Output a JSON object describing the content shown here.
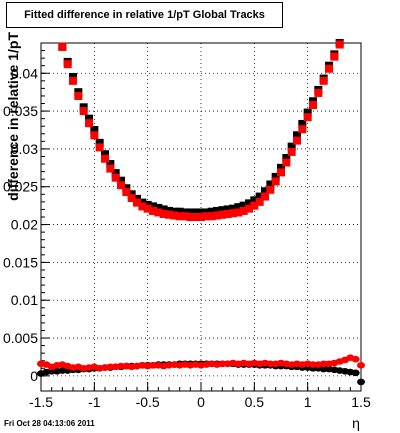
{
  "page": {
    "title": "Fitted difference in relative 1/pT  Global Tracks",
    "timestamp": "Fri Oct 28 04:13:06 2011"
  },
  "chart_data": {
    "type": "scatter",
    "title": "Fitted difference in relative 1/pT  Global Tracks",
    "xlabel": "η",
    "ylabel": "difference in relative 1/pT",
    "xlim": [
      -1.5,
      1.5
    ],
    "ylim": [
      -0.002,
      0.044
    ],
    "x_ticks": [
      -1.5,
      -1,
      -0.5,
      0,
      0.5,
      1,
      1.5
    ],
    "x_tick_labels": [
      "-1.5",
      "-1",
      "-0.5",
      "0",
      "0.5",
      "1",
      "1.5"
    ],
    "y_ticks": [
      0,
      0.005,
      0.01,
      0.015,
      0.02,
      0.025,
      0.03,
      0.035,
      0.04
    ],
    "y_tick_labels": [
      "0",
      "0.005",
      "0.01",
      "0.015",
      "0.02",
      "0.025",
      "0.03",
      "0.035",
      "0.04"
    ],
    "grid": true,
    "series": [
      {
        "color": "#000000",
        "x": [
          -1.3,
          -1.25,
          -1.2,
          -1.15,
          -1.1,
          -1.05,
          -1.0,
          -0.95,
          -0.9,
          -0.85,
          -0.8,
          -0.75,
          -0.7,
          -0.65,
          -0.6,
          -0.55,
          -0.5,
          -0.45,
          -0.4,
          -0.35,
          -0.3,
          -0.25,
          -0.2,
          -0.15,
          -0.1,
          -0.05,
          0.0,
          0.05,
          0.1,
          0.15,
          0.2,
          0.25,
          0.3,
          0.35,
          0.4,
          0.45,
          0.5,
          0.55,
          0.6,
          0.65,
          0.7,
          0.75,
          0.8,
          0.85,
          0.9,
          0.95,
          1.0,
          1.05,
          1.1,
          1.15,
          1.2,
          1.25,
          1.3
        ],
        "y": [
          0.0435,
          0.0415,
          0.0395,
          0.0375,
          0.0355,
          0.034,
          0.0325,
          0.0308,
          0.0293,
          0.028,
          0.0268,
          0.0258,
          0.0248,
          0.024,
          0.0234,
          0.0229,
          0.0226,
          0.0224,
          0.0222,
          0.022,
          0.0218,
          0.0217,
          0.0217,
          0.0216,
          0.0216,
          0.0216,
          0.0216,
          0.0216,
          0.0217,
          0.0218,
          0.0219,
          0.022,
          0.0221,
          0.0223,
          0.0225,
          0.0228,
          0.0232,
          0.0237,
          0.0244,
          0.0253,
          0.0263,
          0.0275,
          0.0288,
          0.0303,
          0.0318,
          0.0333,
          0.0348,
          0.0363,
          0.0378,
          0.0393,
          0.041,
          0.0425,
          0.044
        ]
      },
      {
        "color": "#ff0000",
        "x": [
          -1.3,
          -1.25,
          -1.2,
          -1.15,
          -1.1,
          -1.05,
          -1.0,
          -0.95,
          -0.9,
          -0.85,
          -0.8,
          -0.75,
          -0.7,
          -0.65,
          -0.6,
          -0.55,
          -0.5,
          -0.45,
          -0.4,
          -0.35,
          -0.3,
          -0.25,
          -0.2,
          -0.15,
          -0.1,
          -0.05,
          0.0,
          0.05,
          0.1,
          0.15,
          0.2,
          0.25,
          0.3,
          0.35,
          0.4,
          0.45,
          0.5,
          0.55,
          0.6,
          0.65,
          0.7,
          0.75,
          0.8,
          0.85,
          0.9,
          0.95,
          1.0,
          1.05,
          1.1,
          1.15,
          1.2,
          1.25,
          1.3
        ],
        "y": [
          0.0435,
          0.0412,
          0.039,
          0.037,
          0.035,
          0.0334,
          0.0318,
          0.0302,
          0.0287,
          0.0274,
          0.0262,
          0.0252,
          0.0243,
          0.0235,
          0.0229,
          0.0224,
          0.0221,
          0.0218,
          0.0216,
          0.0214,
          0.0213,
          0.0212,
          0.0211,
          0.0211,
          0.021,
          0.021,
          0.021,
          0.0211,
          0.0211,
          0.0212,
          0.0213,
          0.0214,
          0.0215,
          0.0216,
          0.0218,
          0.0221,
          0.0225,
          0.023,
          0.0237,
          0.0246,
          0.0257,
          0.0269,
          0.0282,
          0.0296,
          0.0311,
          0.0326,
          0.0342,
          0.0358,
          0.0374,
          0.039,
          0.0406,
          0.0422,
          0.0438
        ]
      },
      {
        "color": "#000000",
        "x": [
          -1.5,
          -1.45,
          -1.4,
          -1.35,
          -1.3,
          -1.25,
          -1.2,
          -1.15,
          -1.1,
          -1.05,
          -1.0,
          -0.95,
          -0.9,
          -0.85,
          -0.8,
          -0.75,
          -0.7,
          -0.65,
          -0.6,
          -0.55,
          -0.5,
          -0.45,
          -0.4,
          -0.35,
          -0.3,
          -0.25,
          -0.2,
          -0.15,
          -0.1,
          -0.05,
          0.0,
          0.05,
          0.1,
          0.15,
          0.2,
          0.25,
          0.3,
          0.35,
          0.4,
          0.45,
          0.5,
          0.55,
          0.6,
          0.65,
          0.7,
          0.75,
          0.8,
          0.85,
          0.9,
          0.95,
          1.0,
          1.05,
          1.1,
          1.15,
          1.2,
          1.25,
          1.3,
          1.35,
          1.4,
          1.45,
          1.5
        ],
        "y": [
          0.0003,
          0.0005,
          0.0006,
          0.0006,
          0.0007,
          0.0007,
          0.0008,
          0.0008,
          0.0009,
          0.0009,
          0.001,
          0.001,
          0.0011,
          0.0011,
          0.0012,
          0.0012,
          0.0013,
          0.0013,
          0.0013,
          0.0014,
          0.0014,
          0.0014,
          0.0015,
          0.0015,
          0.0015,
          0.0015,
          0.0016,
          0.0016,
          0.0016,
          0.0016,
          0.0016,
          0.0016,
          0.0016,
          0.0016,
          0.0016,
          0.0016,
          0.0016,
          0.0015,
          0.0015,
          0.0015,
          0.0015,
          0.0014,
          0.0014,
          0.0014,
          0.0013,
          0.0013,
          0.0013,
          0.0012,
          0.0012,
          0.0011,
          0.0011,
          0.001,
          0.001,
          0.0009,
          0.0009,
          0.0008,
          0.0007,
          0.0006,
          0.0005,
          0.0004,
          -0.0008
        ]
      },
      {
        "color": "#ff0000",
        "x": [
          -1.5,
          -1.45,
          -1.4,
          -1.35,
          -1.3,
          -1.25,
          -1.2,
          -1.15,
          -1.1,
          -1.05,
          -1.0,
          -0.95,
          -0.9,
          -0.85,
          -0.8,
          -0.75,
          -0.7,
          -0.65,
          -0.6,
          -0.55,
          -0.5,
          -0.45,
          -0.4,
          -0.35,
          -0.3,
          -0.25,
          -0.2,
          -0.15,
          -0.1,
          -0.05,
          0.0,
          0.05,
          0.1,
          0.15,
          0.2,
          0.25,
          0.3,
          0.35,
          0.4,
          0.45,
          0.5,
          0.55,
          0.6,
          0.65,
          0.7,
          0.75,
          0.8,
          0.85,
          0.9,
          0.95,
          1.0,
          1.05,
          1.1,
          1.15,
          1.2,
          1.25,
          1.3,
          1.35,
          1.4,
          1.45,
          1.5
        ],
        "y": [
          0.0016,
          0.0015,
          0.0012,
          0.0014,
          0.0015,
          0.0013,
          0.0011,
          0.0012,
          0.001,
          0.0011,
          0.0012,
          0.001,
          0.0011,
          0.0012,
          0.0012,
          0.0013,
          0.0013,
          0.0012,
          0.0013,
          0.0014,
          0.0013,
          0.0014,
          0.0014,
          0.0013,
          0.0014,
          0.0015,
          0.0014,
          0.0015,
          0.0014,
          0.0015,
          0.0014,
          0.0015,
          0.0016,
          0.0015,
          0.0016,
          0.0016,
          0.0017,
          0.0016,
          0.0017,
          0.0016,
          0.0017,
          0.0016,
          0.0017,
          0.0016,
          0.0016,
          0.0017,
          0.0016,
          0.0015,
          0.0016,
          0.0015,
          0.0016,
          0.0015,
          0.0015,
          0.0016,
          0.0016,
          0.0017,
          0.0019,
          0.0021,
          0.0024,
          0.0022,
          0.0014
        ]
      }
    ]
  }
}
